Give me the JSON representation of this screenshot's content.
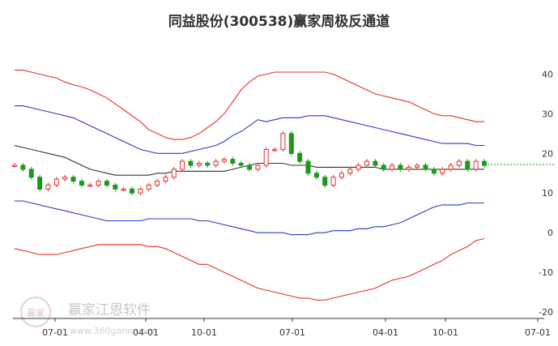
{
  "title": "同益股份(300538)赢家周极反通道",
  "watermark": {
    "brand": "赢家江恩软件",
    "url": "www.360gann.com",
    "logo_text": "赢家"
  },
  "colors": {
    "outer": "#e8302a",
    "inner": "#2b37c9",
    "mid": "#333333",
    "up": "#e8302a",
    "down": "#1a9a1a",
    "last_price": "#1a9a1a",
    "axis": "#333333"
  },
  "chart_data": {
    "type": "line",
    "ylim": [
      -20,
      45
    ],
    "yticks": [
      40,
      30,
      20,
      10,
      0,
      -10,
      -20
    ],
    "xticks": [
      "07-01",
      "04-01",
      "10-01",
      "07-01",
      "04-01",
      "10-01",
      "07-01"
    ],
    "last_price": 17.2,
    "series": [
      {
        "role": "outer_upper",
        "values": [
          41,
          41,
          40.5,
          40,
          39.5,
          39,
          38,
          37.3,
          36.8,
          36,
          35,
          34,
          32.5,
          31,
          29.5,
          28,
          26,
          25,
          24,
          23.5,
          23.5,
          24,
          25,
          26.5,
          28,
          30,
          33,
          36,
          38,
          39.5,
          40,
          40.5,
          40.5,
          40.5,
          40.5,
          40.5,
          40.5,
          40.5,
          40,
          39,
          38,
          37,
          36,
          35,
          34.5,
          34,
          33.5,
          33,
          32,
          31,
          30,
          29.5,
          29.5,
          29,
          28.5,
          28,
          28
        ]
      },
      {
        "role": "inner_upper",
        "values": [
          32,
          32,
          31.5,
          31,
          30.5,
          30,
          29.5,
          29,
          28,
          27,
          26,
          25,
          24,
          23,
          22,
          21,
          20.5,
          20,
          20,
          20,
          20,
          20.5,
          21,
          21.5,
          22,
          23,
          24.5,
          25.5,
          27,
          28.5,
          28,
          28.5,
          29,
          29,
          29,
          29.5,
          29.5,
          29.5,
          29,
          28.5,
          28,
          27.5,
          27,
          26.5,
          26,
          25.5,
          25,
          24.5,
          24,
          23.5,
          23,
          22.5,
          22.5,
          22.5,
          22.5,
          22,
          22
        ]
      },
      {
        "role": "middle",
        "values": [
          22,
          21.5,
          21,
          20.5,
          20,
          19.5,
          19,
          18,
          17,
          16,
          15.5,
          15,
          14.5,
          14.5,
          14.5,
          14.5,
          14.5,
          15,
          15,
          15.5,
          15.5,
          15.5,
          15.5,
          15.5,
          15.5,
          15.5,
          16,
          16.5,
          17,
          17.5,
          17.5,
          17.5,
          17.5,
          17,
          17,
          17,
          16.5,
          16.5,
          16.5,
          16.5,
          16.5,
          16.5,
          16.5,
          16.5,
          16,
          16,
          16,
          16,
          16,
          16,
          16,
          16,
          16,
          16,
          16,
          16,
          16
        ]
      },
      {
        "role": "inner_lower",
        "values": [
          8,
          8,
          7.5,
          7,
          6.5,
          6,
          5.5,
          5,
          4.5,
          4,
          3.5,
          3,
          3,
          3,
          3,
          3,
          3.5,
          3.5,
          3.5,
          3.5,
          3.5,
          3.5,
          3,
          3,
          2.5,
          2,
          1.5,
          1,
          0.5,
          0,
          0,
          0,
          0,
          -0.5,
          -0.5,
          -0.5,
          0,
          0,
          0.5,
          0.5,
          0.5,
          1,
          1,
          1.5,
          1.5,
          2,
          2.5,
          3.5,
          4.5,
          5.5,
          6.5,
          7,
          7,
          7,
          7.5,
          7.5,
          7.5
        ]
      },
      {
        "role": "outer_lower",
        "values": [
          -4,
          -4.5,
          -5,
          -5.5,
          -5.5,
          -5.5,
          -5,
          -4.5,
          -4,
          -3.5,
          -3,
          -3,
          -3,
          -3,
          -3,
          -3,
          -3.5,
          -3.5,
          -4,
          -5,
          -6,
          -7,
          -8,
          -8,
          -9,
          -10,
          -11,
          -12,
          -13,
          -14,
          -14.5,
          -15,
          -15.5,
          -16,
          -16.5,
          -16.5,
          -17,
          -17,
          -16.5,
          -16,
          -15.5,
          -15,
          -14.5,
          -14,
          -13,
          -12,
          -11.5,
          -11,
          -10,
          -9,
          -8,
          -7,
          -5.5,
          -4.5,
          -3.5,
          -2,
          -1.5
        ]
      },
      {
        "role": "price",
        "values": [
          17,
          16,
          14,
          11,
          12,
          13.5,
          14,
          13,
          12,
          12,
          13,
          12,
          11,
          11,
          10,
          11,
          12,
          13,
          14,
          16,
          18,
          17,
          17.5,
          17,
          18,
          18.5,
          17.5,
          17,
          16,
          17,
          21,
          21,
          25,
          20,
          18,
          15,
          14,
          12,
          14,
          15,
          16,
          17,
          18,
          17,
          16,
          17,
          16,
          16.5,
          17,
          16,
          15,
          16,
          17,
          18,
          16,
          18,
          17
        ]
      }
    ]
  }
}
